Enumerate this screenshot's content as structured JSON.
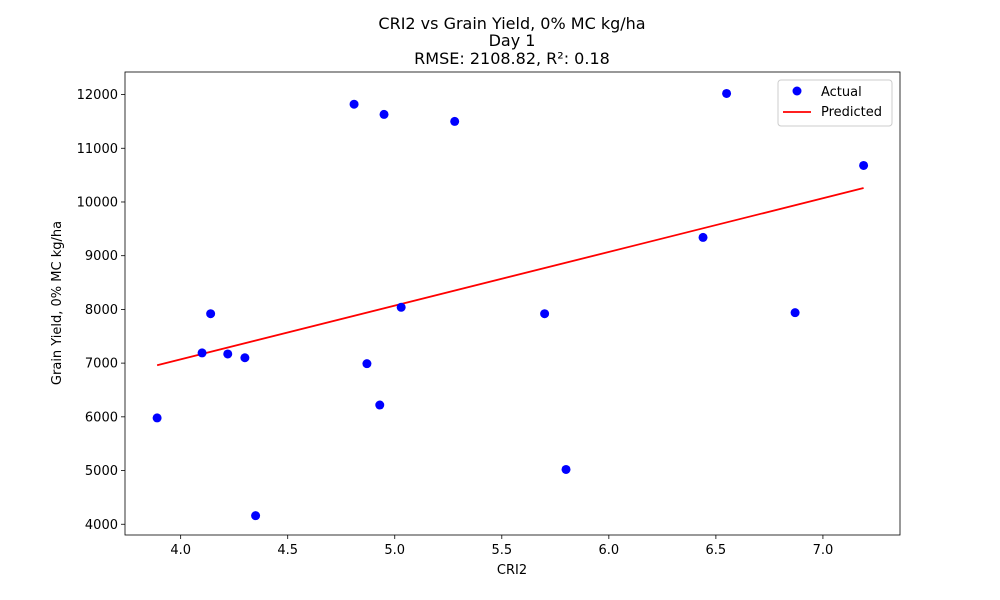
{
  "chart_data": {
    "type": "scatter",
    "title_lines": [
      "CRI2 vs Grain Yield, 0% MC kg/ha",
      "Day 1",
      "RMSE: 2108.82, R²: 0.18"
    ],
    "xlabel": "CRI2",
    "ylabel": "Grain Yield, 0% MC kg/ha",
    "xlim": [
      3.74,
      7.36
    ],
    "ylim": [
      3800,
      12420
    ],
    "xticks": [
      4.0,
      4.5,
      5.0,
      5.5,
      6.0,
      6.5,
      7.0
    ],
    "xtick_labels": [
      "4.0",
      "4.5",
      "5.0",
      "5.5",
      "6.0",
      "6.5",
      "7.0"
    ],
    "yticks": [
      4000,
      5000,
      6000,
      7000,
      8000,
      9000,
      10000,
      11000,
      12000
    ],
    "ytick_labels": [
      "4000",
      "5000",
      "6000",
      "7000",
      "8000",
      "9000",
      "10000",
      "11000",
      "12000"
    ],
    "grid": false,
    "legend_position": "top-right",
    "series": [
      {
        "name": "Actual",
        "kind": "scatter",
        "color": "#0000ff",
        "points": [
          {
            "x": 3.89,
            "y": 5980
          },
          {
            "x": 4.1,
            "y": 7190
          },
          {
            "x": 4.14,
            "y": 7920
          },
          {
            "x": 4.22,
            "y": 7170
          },
          {
            "x": 4.3,
            "y": 7100
          },
          {
            "x": 4.35,
            "y": 4160
          },
          {
            "x": 4.81,
            "y": 11820
          },
          {
            "x": 4.87,
            "y": 6990
          },
          {
            "x": 4.93,
            "y": 6220
          },
          {
            "x": 4.95,
            "y": 11630
          },
          {
            "x": 5.03,
            "y": 8040
          },
          {
            "x": 5.28,
            "y": 11500
          },
          {
            "x": 5.7,
            "y": 7920
          },
          {
            "x": 5.8,
            "y": 5020
          },
          {
            "x": 6.44,
            "y": 9340
          },
          {
            "x": 6.55,
            "y": 12020
          },
          {
            "x": 6.87,
            "y": 7940
          },
          {
            "x": 7.19,
            "y": 10680
          }
        ]
      },
      {
        "name": "Predicted",
        "kind": "line",
        "color": "#ff0000",
        "points": [
          {
            "x": 3.89,
            "y": 6960
          },
          {
            "x": 7.19,
            "y": 10260
          }
        ]
      }
    ]
  }
}
